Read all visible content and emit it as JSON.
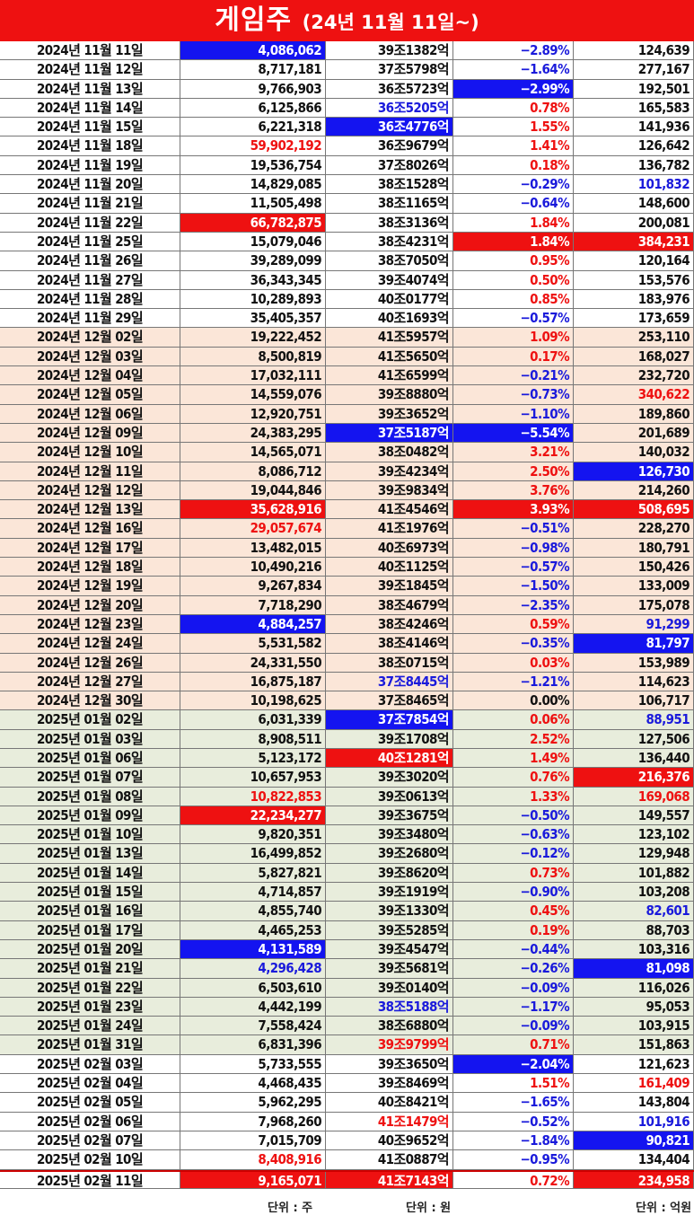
{
  "title": {
    "main": "게임주",
    "sub": "(24년 11월 11일~)"
  },
  "colors": {
    "red": "#ee1111",
    "blue": "#1414f0",
    "band1": "#ffffff",
    "band2": "#fbe6d8",
    "band3": "#e8eddc"
  },
  "units": {
    "shares": "단위 : 주",
    "won": "단위 : 원",
    "eok": "단위 : 억원"
  },
  "rows": [
    {
      "band": 1,
      "date": "2024년 11월 11일",
      "vol": "4,086,062",
      "vs": "bg-blue",
      "cap": "39조1382억",
      "cs": "",
      "chg": "-2.89%",
      "gs": "",
      "amt": "124,639",
      "as": ""
    },
    {
      "band": 1,
      "date": "2024년 11월 12일",
      "vol": "8,717,181",
      "vs": "",
      "cap": "37조5798억",
      "cs": "",
      "chg": "-1.64%",
      "gs": "",
      "amt": "277,167",
      "as": ""
    },
    {
      "band": 1,
      "date": "2024년 11월 13일",
      "vol": "9,766,903",
      "vs": "",
      "cap": "36조5723억",
      "cs": "",
      "chg": "-2.99%",
      "gs": "bg-blue",
      "amt": "192,501",
      "as": ""
    },
    {
      "band": 1,
      "date": "2024년 11월 14일",
      "vol": "6,125,866",
      "vs": "",
      "cap": "36조5205억",
      "cs": "t-blue",
      "chg": "0.78%",
      "gs": "",
      "amt": "165,583",
      "as": ""
    },
    {
      "band": 1,
      "date": "2024년 11월 15일",
      "vol": "6,221,318",
      "vs": "",
      "cap": "36조4776억",
      "cs": "bg-blue",
      "chg": "1.55%",
      "gs": "",
      "amt": "141,936",
      "as": ""
    },
    {
      "band": 1,
      "date": "2024년 11월 18일",
      "vol": "59,902,192",
      "vs": "t-red",
      "cap": "36조9679억",
      "cs": "",
      "chg": "1.41%",
      "gs": "",
      "amt": "126,642",
      "as": ""
    },
    {
      "band": 1,
      "date": "2024년 11월 19일",
      "vol": "19,536,754",
      "vs": "",
      "cap": "37조8026억",
      "cs": "",
      "chg": "0.18%",
      "gs": "",
      "amt": "136,782",
      "as": ""
    },
    {
      "band": 1,
      "date": "2024년 11월 20일",
      "vol": "14,829,085",
      "vs": "",
      "cap": "38조1528억",
      "cs": "",
      "chg": "-0.29%",
      "gs": "",
      "amt": "101,832",
      "as": "t-blue"
    },
    {
      "band": 1,
      "date": "2024년 11월 21일",
      "vol": "11,505,498",
      "vs": "",
      "cap": "38조1165억",
      "cs": "",
      "chg": "-0.64%",
      "gs": "",
      "amt": "148,600",
      "as": ""
    },
    {
      "band": 1,
      "date": "2024년 11월 22일",
      "vol": "66,782,875",
      "vs": "bg-red",
      "cap": "38조3136억",
      "cs": "",
      "chg": "1.84%",
      "gs": "",
      "amt": "200,081",
      "as": ""
    },
    {
      "band": 1,
      "date": "2024년 11월 25일",
      "vol": "15,079,046",
      "vs": "",
      "cap": "38조4231억",
      "cs": "",
      "chg": "1.84%",
      "gs": "bg-red",
      "amt": "384,231",
      "as": "bg-red"
    },
    {
      "band": 1,
      "date": "2024년 11월 26일",
      "vol": "39,289,099",
      "vs": "",
      "cap": "38조7050억",
      "cs": "",
      "chg": "0.95%",
      "gs": "",
      "amt": "120,164",
      "as": ""
    },
    {
      "band": 1,
      "date": "2024년 11월 27일",
      "vol": "36,343,345",
      "vs": "",
      "cap": "39조4074억",
      "cs": "",
      "chg": "0.50%",
      "gs": "",
      "amt": "153,576",
      "as": ""
    },
    {
      "band": 1,
      "date": "2024년 11월 28일",
      "vol": "10,289,893",
      "vs": "",
      "cap": "40조0177억",
      "cs": "",
      "chg": "0.85%",
      "gs": "",
      "amt": "183,976",
      "as": ""
    },
    {
      "band": 1,
      "date": "2024년 11월 29일",
      "vol": "35,405,357",
      "vs": "",
      "cap": "40조1693억",
      "cs": "",
      "chg": "-0.57%",
      "gs": "",
      "amt": "173,659",
      "as": ""
    },
    {
      "band": 2,
      "date": "2024년 12월 02일",
      "vol": "19,222,452",
      "vs": "",
      "cap": "41조5957억",
      "cs": "",
      "chg": "1.09%",
      "gs": "",
      "amt": "253,110",
      "as": ""
    },
    {
      "band": 2,
      "date": "2024년 12월 03일",
      "vol": "8,500,819",
      "vs": "",
      "cap": "41조5650억",
      "cs": "",
      "chg": "0.17%",
      "gs": "",
      "amt": "168,027",
      "as": ""
    },
    {
      "band": 2,
      "date": "2024년 12월 04일",
      "vol": "17,032,111",
      "vs": "",
      "cap": "41조6599억",
      "cs": "",
      "chg": "-0.21%",
      "gs": "",
      "amt": "232,720",
      "as": ""
    },
    {
      "band": 2,
      "date": "2024년 12월 05일",
      "vol": "14,559,076",
      "vs": "",
      "cap": "39조8880억",
      "cs": "",
      "chg": "-0.73%",
      "gs": "",
      "amt": "340,622",
      "as": "t-red"
    },
    {
      "band": 2,
      "date": "2024년 12월 06일",
      "vol": "12,920,751",
      "vs": "",
      "cap": "39조3652억",
      "cs": "",
      "chg": "-1.10%",
      "gs": "",
      "amt": "189,860",
      "as": ""
    },
    {
      "band": 2,
      "date": "2024년 12월 09일",
      "vol": "24,383,295",
      "vs": "",
      "cap": "37조5187억",
      "cs": "bg-blue",
      "chg": "-5.54%",
      "gs": "bg-blue",
      "amt": "201,689",
      "as": ""
    },
    {
      "band": 2,
      "date": "2024년 12월 10일",
      "vol": "14,565,071",
      "vs": "",
      "cap": "38조0482억",
      "cs": "",
      "chg": "3.21%",
      "gs": "",
      "amt": "140,032",
      "as": ""
    },
    {
      "band": 2,
      "date": "2024년 12월 11일",
      "vol": "8,086,712",
      "vs": "",
      "cap": "39조4234억",
      "cs": "",
      "chg": "2.50%",
      "gs": "",
      "amt": "126,730",
      "as": "bg-blue"
    },
    {
      "band": 2,
      "date": "2024년 12월 12일",
      "vol": "19,044,846",
      "vs": "",
      "cap": "39조9834억",
      "cs": "",
      "chg": "3.76%",
      "gs": "",
      "amt": "214,260",
      "as": ""
    },
    {
      "band": 2,
      "date": "2024년 12월 13일",
      "vol": "35,628,916",
      "vs": "bg-red",
      "cap": "41조4546억",
      "cs": "",
      "chg": "3.93%",
      "gs": "bg-red",
      "amt": "508,695",
      "as": "bg-red"
    },
    {
      "band": 2,
      "date": "2024년 12월 16일",
      "vol": "29,057,674",
      "vs": "t-red",
      "cap": "41조1976억",
      "cs": "",
      "chg": "-0.51%",
      "gs": "",
      "amt": "228,270",
      "as": ""
    },
    {
      "band": 2,
      "date": "2024년 12월 17일",
      "vol": "13,482,015",
      "vs": "",
      "cap": "40조6973억",
      "cs": "",
      "chg": "-0.98%",
      "gs": "",
      "amt": "180,791",
      "as": ""
    },
    {
      "band": 2,
      "date": "2024년 12월 18일",
      "vol": "10,490,216",
      "vs": "",
      "cap": "40조1125억",
      "cs": "",
      "chg": "-0.57%",
      "gs": "",
      "amt": "150,426",
      "as": ""
    },
    {
      "band": 2,
      "date": "2024년 12월 19일",
      "vol": "9,267,834",
      "vs": "",
      "cap": "39조1845억",
      "cs": "",
      "chg": "-1.50%",
      "gs": "",
      "amt": "133,009",
      "as": ""
    },
    {
      "band": 2,
      "date": "2024년 12월 20일",
      "vol": "7,718,290",
      "vs": "",
      "cap": "38조4679억",
      "cs": "",
      "chg": "-2.35%",
      "gs": "",
      "amt": "175,078",
      "as": ""
    },
    {
      "band": 2,
      "date": "2024년 12월 23일",
      "vol": "4,884,257",
      "vs": "bg-blue",
      "cap": "38조4246억",
      "cs": "",
      "chg": "0.59%",
      "gs": "",
      "amt": "91,299",
      "as": "t-blue"
    },
    {
      "band": 2,
      "date": "2024년 12월 24일",
      "vol": "5,531,582",
      "vs": "",
      "cap": "38조4146억",
      "cs": "",
      "chg": "-0.35%",
      "gs": "",
      "amt": "81,797",
      "as": "bg-blue"
    },
    {
      "band": 2,
      "date": "2024년 12월 26일",
      "vol": "24,331,550",
      "vs": "",
      "cap": "38조0715억",
      "cs": "",
      "chg": "0.03%",
      "gs": "",
      "amt": "153,989",
      "as": ""
    },
    {
      "band": 2,
      "date": "2024년 12월 27일",
      "vol": "16,875,187",
      "vs": "",
      "cap": "37조8445억",
      "cs": "t-blue",
      "chg": "-1.21%",
      "gs": "",
      "amt": "114,623",
      "as": ""
    },
    {
      "band": 2,
      "date": "2024년 12월 30일",
      "vol": "10,198,625",
      "vs": "",
      "cap": "37조8465억",
      "cs": "",
      "chg": "0.00%",
      "gs": "",
      "amt": "106,717",
      "as": ""
    },
    {
      "band": 3,
      "date": "2025년 01월 02일",
      "vol": "6,031,339",
      "vs": "",
      "cap": "37조7854억",
      "cs": "bg-blue",
      "chg": "0.06%",
      "gs": "",
      "amt": "88,951",
      "as": "t-blue"
    },
    {
      "band": 3,
      "date": "2025년 01월 03일",
      "vol": "8,908,511",
      "vs": "",
      "cap": "39조1708억",
      "cs": "",
      "chg": "2.52%",
      "gs": "",
      "amt": "127,506",
      "as": ""
    },
    {
      "band": 3,
      "date": "2025년 01월 06일",
      "vol": "5,123,172",
      "vs": "",
      "cap": "40조1281억",
      "cs": "bg-red",
      "chg": "1.49%",
      "gs": "",
      "amt": "136,440",
      "as": ""
    },
    {
      "band": 3,
      "date": "2025년 01월 07일",
      "vol": "10,657,953",
      "vs": "",
      "cap": "39조3020억",
      "cs": "",
      "chg": "0.76%",
      "gs": "",
      "amt": "216,376",
      "as": "bg-red"
    },
    {
      "band": 3,
      "date": "2025년 01월 08일",
      "vol": "10,822,853",
      "vs": "t-red",
      "cap": "39조0613억",
      "cs": "",
      "chg": "1.33%",
      "gs": "",
      "amt": "169,068",
      "as": "t-red"
    },
    {
      "band": 3,
      "date": "2025년 01월 09일",
      "vol": "22,234,277",
      "vs": "bg-red",
      "cap": "39조3675억",
      "cs": "",
      "chg": "-0.50%",
      "gs": "",
      "amt": "149,557",
      "as": ""
    },
    {
      "band": 3,
      "date": "2025년 01월 10일",
      "vol": "9,820,351",
      "vs": "",
      "cap": "39조3480억",
      "cs": "",
      "chg": "-0.63%",
      "gs": "",
      "amt": "123,102",
      "as": ""
    },
    {
      "band": 3,
      "date": "2025년 01월 13일",
      "vol": "16,499,852",
      "vs": "",
      "cap": "39조2680억",
      "cs": "",
      "chg": "-0.12%",
      "gs": "",
      "amt": "129,948",
      "as": ""
    },
    {
      "band": 3,
      "date": "2025년 01월 14일",
      "vol": "5,827,821",
      "vs": "",
      "cap": "39조8620억",
      "cs": "",
      "chg": "0.73%",
      "gs": "",
      "amt": "101,882",
      "as": ""
    },
    {
      "band": 3,
      "date": "2025년 01월 15일",
      "vol": "4,714,857",
      "vs": "",
      "cap": "39조1919억",
      "cs": "",
      "chg": "-0.90%",
      "gs": "",
      "amt": "103,208",
      "as": ""
    },
    {
      "band": 3,
      "date": "2025년 01월 16일",
      "vol": "4,855,740",
      "vs": "",
      "cap": "39조1330억",
      "cs": "",
      "chg": "0.45%",
      "gs": "",
      "amt": "82,601",
      "as": "t-blue"
    },
    {
      "band": 3,
      "date": "2025년 01월 17일",
      "vol": "4,465,253",
      "vs": "",
      "cap": "39조5285억",
      "cs": "",
      "chg": "0.19%",
      "gs": "",
      "amt": "88,703",
      "as": ""
    },
    {
      "band": 3,
      "date": "2025년 01월 20일",
      "vol": "4,131,589",
      "vs": "bg-blue",
      "cap": "39조4547억",
      "cs": "",
      "chg": "-0.44%",
      "gs": "",
      "amt": "103,316",
      "as": ""
    },
    {
      "band": 3,
      "date": "2025년 01월 21일",
      "vol": "4,296,428",
      "vs": "t-blue",
      "cap": "39조5681억",
      "cs": "",
      "chg": "-0.26%",
      "gs": "",
      "amt": "81,098",
      "as": "bg-blue"
    },
    {
      "band": 3,
      "date": "2025년 01월 22일",
      "vol": "6,503,610",
      "vs": "",
      "cap": "39조0140억",
      "cs": "",
      "chg": "-0.09%",
      "gs": "",
      "amt": "116,026",
      "as": ""
    },
    {
      "band": 3,
      "date": "2025년 01월 23일",
      "vol": "4,442,199",
      "vs": "",
      "cap": "38조5188억",
      "cs": "t-blue",
      "chg": "-1.17%",
      "gs": "",
      "amt": "95,053",
      "as": ""
    },
    {
      "band": 3,
      "date": "2025년 01월 24일",
      "vol": "7,558,424",
      "vs": "",
      "cap": "38조6880억",
      "cs": "",
      "chg": "-0.09%",
      "gs": "",
      "amt": "103,915",
      "as": ""
    },
    {
      "band": 3,
      "date": "2025년 01월 31일",
      "vol": "6,831,396",
      "vs": "",
      "cap": "39조9799억",
      "cs": "t-red",
      "chg": "0.71%",
      "gs": "",
      "amt": "151,863",
      "as": ""
    },
    {
      "band": 1,
      "date": "2025년 02월 03일",
      "vol": "5,733,555",
      "vs": "",
      "cap": "39조3650억",
      "cs": "",
      "chg": "-2.04%",
      "gs": "bg-blue",
      "amt": "121,623",
      "as": ""
    },
    {
      "band": 1,
      "date": "2025년 02월 04일",
      "vol": "4,468,435",
      "vs": "",
      "cap": "39조8469억",
      "cs": "",
      "chg": "1.51%",
      "gs": "",
      "amt": "161,409",
      "as": "t-red"
    },
    {
      "band": 1,
      "date": "2025년 02월 05일",
      "vol": "5,962,295",
      "vs": "",
      "cap": "40조8421억",
      "cs": "",
      "chg": "-1.65%",
      "gs": "",
      "amt": "143,804",
      "as": ""
    },
    {
      "band": 1,
      "date": "2025년 02월 06일",
      "vol": "7,968,260",
      "vs": "",
      "cap": "41조1479억",
      "cs": "t-red",
      "chg": "-0.52%",
      "gs": "",
      "amt": "101,916",
      "as": "t-blue"
    },
    {
      "band": 1,
      "date": "2025년 02월 07일",
      "vol": "7,015,709",
      "vs": "",
      "cap": "40조9652억",
      "cs": "",
      "chg": "-1.84%",
      "gs": "",
      "amt": "90,821",
      "as": "bg-blue"
    },
    {
      "band": 1,
      "date": "2025년 02월 10일",
      "vol": "8,408,916",
      "vs": "t-red",
      "cap": "41조0887억",
      "cs": "",
      "chg": "-0.95%",
      "gs": "",
      "amt": "134,404",
      "as": ""
    },
    {
      "band": 1,
      "date": "2025년 02월 11일",
      "vol": "9,165,071",
      "vs": "bg-red",
      "cap": "41조7143억",
      "cs": "bg-red",
      "chg": "0.72%",
      "gs": "",
      "amt": "234,958",
      "as": "bg-red",
      "last": true
    }
  ]
}
